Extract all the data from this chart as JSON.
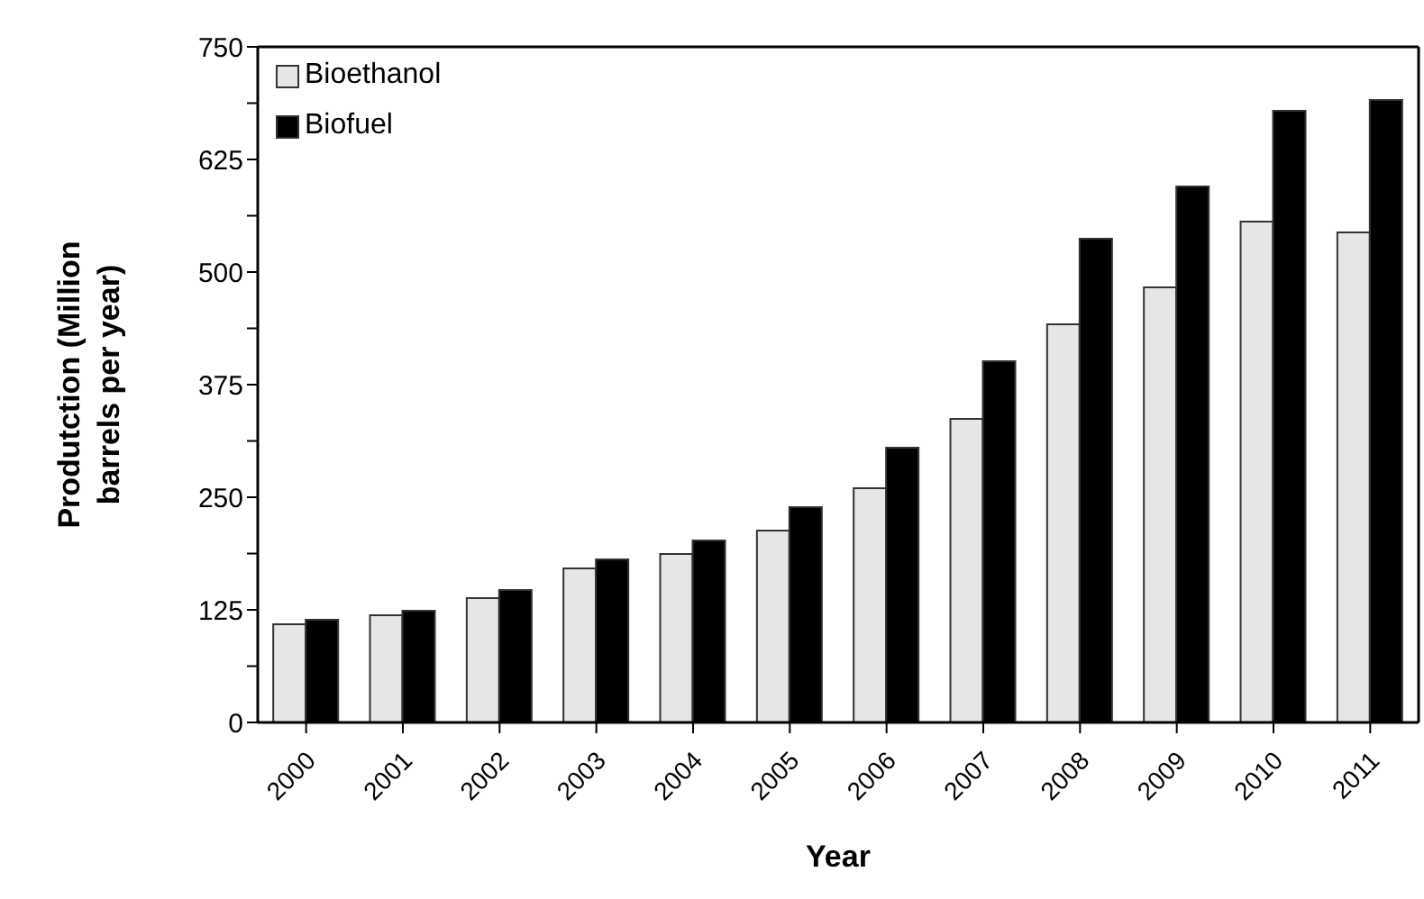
{
  "chart_data": {
    "type": "bar",
    "xlabel": "Year",
    "ylabel": "Produtction (Million barrels per year)",
    "categories": [
      "2000",
      "2001",
      "2002",
      "2003",
      "2004",
      "2005",
      "2006",
      "2007",
      "2008",
      "2009",
      "2010",
      "2011"
    ],
    "series": [
      {
        "name": "Bioethanol",
        "color": "#e6e6e6",
        "values": [
          109,
          119,
          138,
          171,
          187,
          213,
          260,
          337,
          442,
          483,
          556,
          544
        ]
      },
      {
        "name": "Biofuel",
        "color": "#000000",
        "values": [
          114,
          124,
          147,
          181,
          202,
          239,
          305,
          401,
          537,
          595,
          679,
          691
        ]
      }
    ],
    "ylim": [
      0,
      750
    ],
    "yticks": [
      0,
      {
        "value": 62.5,
        "label": null
      },
      125,
      {
        "value": 187.5,
        "label": null
      },
      250,
      {
        "value": 312.5,
        "label": null
      },
      375,
      {
        "value": 437.5,
        "label": null
      },
      500,
      {
        "value": 562.5,
        "label": null
      },
      625,
      {
        "value": 687.5,
        "label": null
      },
      750
    ],
    "grid": false,
    "legend": "top left"
  }
}
